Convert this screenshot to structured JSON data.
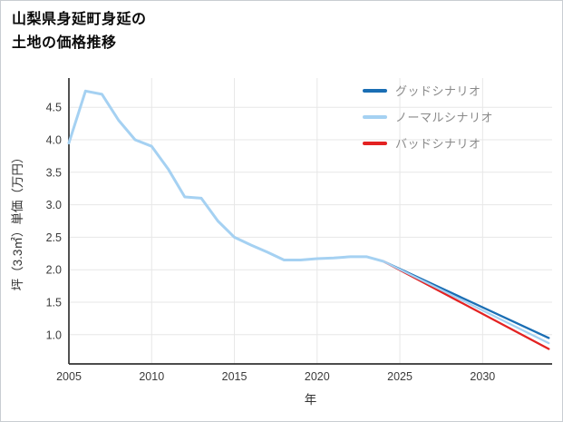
{
  "page": {
    "title_line1": "山梨県身延町身延の",
    "title_line2": "土地の価格推移"
  },
  "chart_data": {
    "type": "line",
    "title": "山梨県身延町身延の土地の価格推移",
    "xlabel": "年",
    "ylabel": "坪（3.3㎡）単価（万円）",
    "xlim": [
      2005,
      2034.2
    ],
    "ylim": [
      0.55,
      4.95
    ],
    "x_ticks": [
      2005,
      2010,
      2015,
      2020,
      2025,
      2030
    ],
    "y_ticks": [
      1.0,
      1.5,
      2.0,
      2.5,
      3.0,
      3.5,
      4.0,
      4.5
    ],
    "y_tick_labels": [
      "1.0",
      "1.5",
      "2.0",
      "2.5",
      "3.0",
      "3.5",
      "4.0",
      "4.5"
    ],
    "grid": true,
    "legend_position": "top-right",
    "colors": {
      "good": "#1a6eb4",
      "normal": "#a5d1f2",
      "bad": "#e32222",
      "history": "#a5d1f2",
      "grid": "#e7e7e7",
      "axis": "#333333"
    },
    "series": [
      {
        "name": "good-scenario",
        "color": "#1a6eb4",
        "width": 2.3,
        "x": [
          2024,
          2034
        ],
        "values": [
          2.13,
          0.95
        ]
      },
      {
        "name": "bad-scenario",
        "color": "#e32222",
        "width": 2.3,
        "x": [
          2024,
          2034
        ],
        "values": [
          2.13,
          0.78
        ]
      },
      {
        "name": "normal-scenario",
        "color": "#a5d1f2",
        "width": 2.3,
        "x": [
          2024,
          2034
        ],
        "values": [
          2.13,
          0.87
        ]
      },
      {
        "name": "history",
        "color": "#a5d1f2",
        "width": 3,
        "x": [
          2005,
          2006,
          2007,
          2008,
          2009,
          2010,
          2011,
          2012,
          2013,
          2014,
          2015,
          2016,
          2017,
          2018,
          2019,
          2020,
          2021,
          2022,
          2023,
          2024
        ],
        "values": [
          3.95,
          4.75,
          4.7,
          4.3,
          4.0,
          3.9,
          3.55,
          3.12,
          3.1,
          2.75,
          2.5,
          2.38,
          2.27,
          2.15,
          2.15,
          2.17,
          2.18,
          2.2,
          2.2,
          2.13
        ]
      }
    ],
    "legend": [
      {
        "label": "グッドシナリオ",
        "color": "#1a6eb4"
      },
      {
        "label": "ノーマルシナリオ",
        "color": "#a5d1f2"
      },
      {
        "label": "バッドシナリオ",
        "color": "#e32222"
      }
    ]
  }
}
